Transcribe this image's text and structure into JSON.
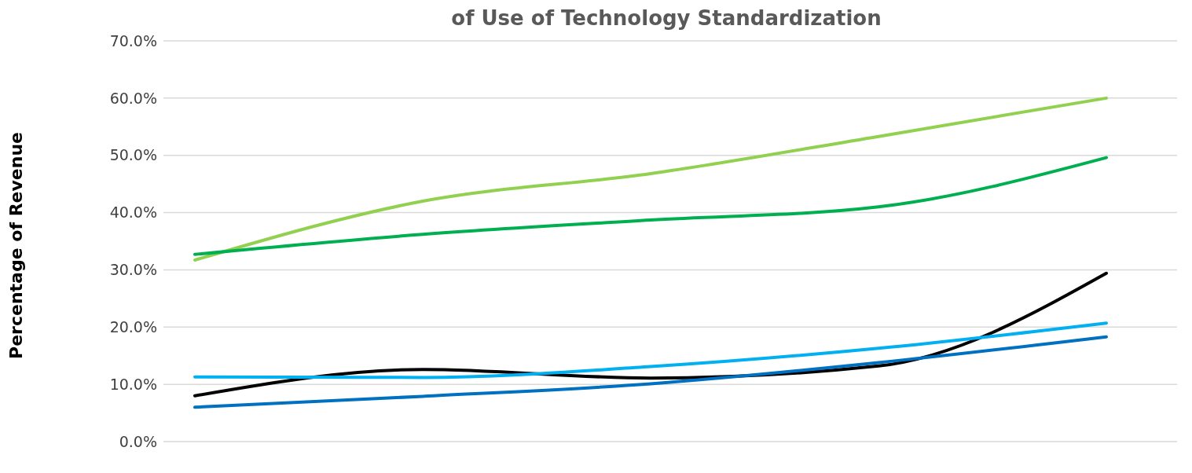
{
  "chart_data": {
    "type": "line",
    "title": "of Use of Technology Standardization",
    "ylabel": "Percentage of Revenue",
    "categories": [
      null,
      null,
      null,
      null,
      null
    ],
    "series": [
      {
        "color": "#92d050",
        "values": [
          31.7,
          42.0,
          46.8,
          53.3,
          60.0
        ]
      },
      {
        "color": "#00b050",
        "values": [
          32.7,
          36.2,
          38.7,
          41.0,
          49.6
        ]
      },
      {
        "color": "#000000",
        "values": [
          8.0,
          12.6,
          11.1,
          13.2,
          29.4
        ]
      },
      {
        "color": "#00b0f0",
        "values": [
          11.3,
          11.2,
          13.1,
          16.3,
          20.7
        ]
      },
      {
        "color": "#0070c0",
        "values": [
          6.0,
          7.9,
          10.1,
          13.8,
          18.3
        ]
      }
    ],
    "ylim": [
      0,
      70
    ],
    "yticks": [
      {
        "value": 0,
        "label": "0.0%"
      },
      {
        "value": 10,
        "label": "10.0%"
      },
      {
        "value": 20,
        "label": "20.0%"
      },
      {
        "value": 30,
        "label": "30.0%"
      },
      {
        "value": 40,
        "label": "40.0%"
      },
      {
        "value": 50,
        "label": "50.0%"
      },
      {
        "value": 60,
        "label": "60.0%"
      },
      {
        "value": 70,
        "label": "70.0%"
      }
    ],
    "grid": "y",
    "legend": false,
    "marker": "none",
    "line_style": "solid"
  }
}
